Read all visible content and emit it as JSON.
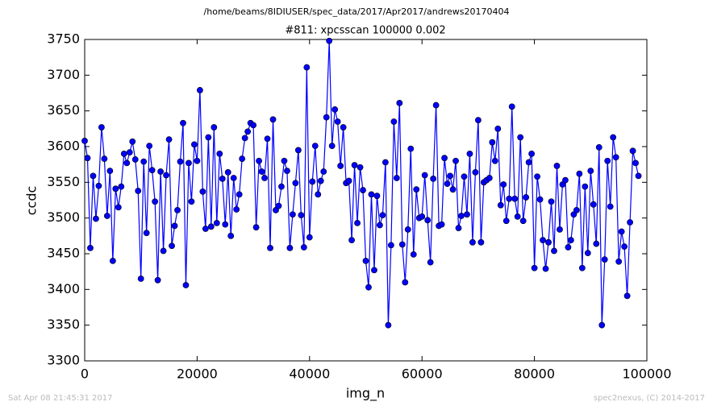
{
  "chart_data": {
    "type": "line",
    "suptitle": "/home/beams/8IDIUSER/spec_data/2017/Apr2017/andrews20170404",
    "title": "#811: xpcsscan 100000 0.002",
    "xlabel": "img_n",
    "ylabel": "ccdc",
    "footer_left": "Sat Apr 08 21:45:31 2017",
    "footer_right": "spec2nexus, (C) 2014-2017",
    "xlim": [
      0,
      100000
    ],
    "xticks": [
      0,
      20000,
      40000,
      60000,
      80000,
      100000
    ],
    "ylim": [
      3300,
      3750
    ],
    "yticks": [
      3300,
      3350,
      3400,
      3450,
      3500,
      3550,
      3600,
      3650,
      3700,
      3750
    ],
    "grid": false,
    "x": [
      0,
      500,
      1000,
      1500,
      2000,
      2500,
      3000,
      3500,
      4000,
      4500,
      5000,
      5500,
      6000,
      6500,
      7000,
      7500,
      8000,
      8500,
      9000,
      9500,
      10000,
      10500,
      11000,
      11500,
      12000,
      12500,
      13000,
      13500,
      14000,
      14500,
      15000,
      15500,
      16000,
      16500,
      17000,
      17500,
      18000,
      18500,
      19000,
      19500,
      20000,
      20500,
      21000,
      21500,
      22000,
      22500,
      23000,
      23500,
      24000,
      24500,
      25000,
      25500,
      26000,
      26500,
      27000,
      27500,
      28000,
      28500,
      29000,
      29500,
      30000,
      30500,
      31000,
      31500,
      32000,
      32500,
      33000,
      33500,
      34000,
      34500,
      35000,
      35500,
      36000,
      36500,
      37000,
      37500,
      38000,
      38500,
      39000,
      39500,
      40000,
      40500,
      41000,
      41500,
      42000,
      42500,
      43000,
      43500,
      44000,
      44500,
      45000,
      45500,
      46000,
      46500,
      47000,
      47500,
      48000,
      48500,
      49000,
      49500,
      50000,
      50500,
      51000,
      51500,
      52000,
      52500,
      53000,
      53500,
      54000,
      54500,
      55000,
      55500,
      56000,
      56500,
      57000,
      57500,
      58000,
      58500,
      59000,
      59500,
      60000,
      60500,
      61000,
      61500,
      62000,
      62500,
      63000,
      63500,
      64000,
      64500,
      65000,
      65500,
      66000,
      66500,
      67000,
      67500,
      68000,
      68500,
      69000,
      69500,
      70000,
      70500,
      71000,
      71500,
      72000,
      72500,
      73000,
      73500,
      74000,
      74500,
      75000,
      75500,
      76000,
      76500,
      77000,
      77500,
      78000,
      78500,
      79000,
      79500,
      80000,
      80500,
      81000,
      81500,
      82000,
      82500,
      83000,
      83500,
      84000,
      84500,
      85000,
      85500,
      86000,
      86500,
      87000,
      87500,
      88000,
      88500,
      89000,
      89500,
      90000,
      90500,
      91000,
      91500,
      92000,
      92500,
      93000,
      93500,
      94000,
      94500,
      95000,
      95500,
      96000,
      96500,
      97000,
      97500,
      98000,
      98500
    ],
    "series": [
      {
        "name": "ccdc",
        "color": "#0000ff",
        "values": [
          3608,
          3584,
          3458,
          3559,
          3499,
          3545,
          3627,
          3583,
          3503,
          3566,
          3440,
          3541,
          3515,
          3544,
          3590,
          3577,
          3592,
          3607,
          3582,
          3538,
          3415,
          3579,
          3479,
          3601,
          3567,
          3523,
          3413,
          3565,
          3454,
          3560,
          3610,
          3461,
          3489,
          3511,
          3579,
          3633,
          3406,
          3577,
          3523,
          3603,
          3580,
          3679,
          3537,
          3485,
          3613,
          3488,
          3627,
          3493,
          3590,
          3555,
          3491,
          3564,
          3475,
          3556,
          3512,
          3533,
          3583,
          3612,
          3621,
          3633,
          3630,
          3487,
          3580,
          3565,
          3556,
          3611,
          3458,
          3638,
          3511,
          3517,
          3544,
          3580,
          3566,
          3458,
          3505,
          3549,
          3595,
          3504,
          3459,
          3711,
          3473,
          3551,
          3601,
          3533,
          3552,
          3565,
          3641,
          3748,
          3601,
          3652,
          3635,
          3573,
          3627,
          3549,
          3552,
          3469,
          3574,
          3493,
          3571,
          3539,
          3440,
          3403,
          3533,
          3427,
          3531,
          3490,
          3504,
          3578,
          3350,
          3462,
          3635,
          3556,
          3661,
          3463,
          3410,
          3484,
          3597,
          3449,
          3540,
          3500,
          3502,
          3560,
          3497,
          3438,
          3555,
          3658,
          3489,
          3491,
          3584,
          3548,
          3559,
          3540,
          3580,
          3486,
          3503,
          3558,
          3505,
          3590,
          3466,
          3564,
          3637,
          3466,
          3550,
          3553,
          3556,
          3606,
          3580,
          3625,
          3518,
          3547,
          3496,
          3527,
          3656,
          3527,
          3502,
          3613,
          3496,
          3529,
          3578,
          3590,
          3430,
          3558,
          3526,
          3469,
          3429,
          3466,
          3523,
          3454,
          3573,
          3484,
          3547,
          3553,
          3459,
          3469,
          3505,
          3511,
          3562,
          3430,
          3544,
          3451,
          3566,
          3519,
          3464,
          3599,
          3350,
          3442,
          3580,
          3516,
          3613,
          3585,
          3439,
          3481,
          3460,
          3391,
          3494,
          3594,
          3577,
          3559
        ]
      }
    ]
  }
}
